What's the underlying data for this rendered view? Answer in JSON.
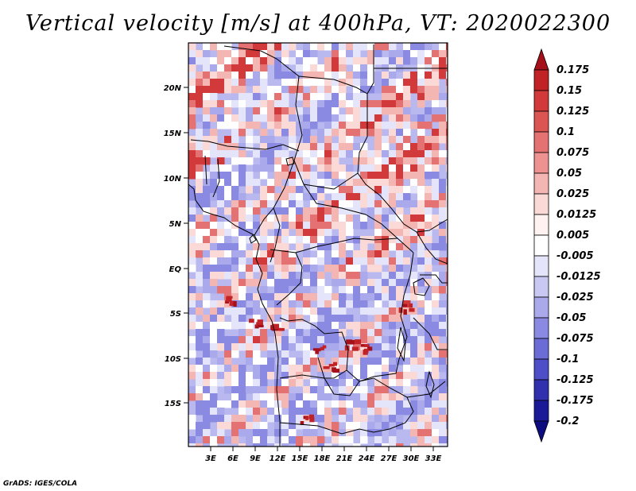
{
  "title": "Vertical velocity [m/s] at 400hPa, VT: 2020022300",
  "footer": "GrADS: IGES/COLA",
  "map": {
    "lon_labels": [
      "3E",
      "6E",
      "9E",
      "12E",
      "15E",
      "18E",
      "21E",
      "24E",
      "27E",
      "30E",
      "33E"
    ],
    "lat_labels": [
      "20N",
      "15N",
      "10N",
      "5N",
      "EQ",
      "5S",
      "10S",
      "15S"
    ]
  },
  "colorbar": {
    "labels": [
      "0.175",
      "0.15",
      "0.125",
      "0.1",
      "0.075",
      "0.05",
      "0.025",
      "0.0125",
      "0.005",
      "-0.005",
      "-0.0125",
      "-0.025",
      "-0.05",
      "-0.075",
      "-0.1",
      "-0.125",
      "-0.175",
      "-0.2"
    ],
    "colors": [
      "#a5101a",
      "#c02226",
      "#d2393a",
      "#db5553",
      "#e57272",
      "#ed9290",
      "#f4b6b2",
      "#fad9d6",
      "#fff2f0",
      "#ffffff",
      "#e4e4fa",
      "#c8c8f3",
      "#a9a9ec",
      "#8a8ae2",
      "#6c6cd6",
      "#4e4ec8",
      "#3131b0",
      "#1a1a98",
      "#0c0c80"
    ]
  }
}
